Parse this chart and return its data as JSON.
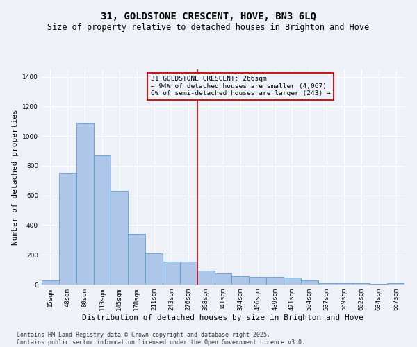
{
  "title": "31, GOLDSTONE CRESCENT, HOVE, BN3 6LQ",
  "subtitle": "Size of property relative to detached houses in Brighton and Hove",
  "xlabel": "Distribution of detached houses by size in Brighton and Hove",
  "ylabel": "Number of detached properties",
  "categories": [
    "15sqm",
    "48sqm",
    "80sqm",
    "113sqm",
    "145sqm",
    "178sqm",
    "211sqm",
    "243sqm",
    "276sqm",
    "308sqm",
    "341sqm",
    "374sqm",
    "406sqm",
    "439sqm",
    "471sqm",
    "504sqm",
    "537sqm",
    "569sqm",
    "602sqm",
    "634sqm",
    "667sqm"
  ],
  "values": [
    30,
    755,
    1090,
    870,
    630,
    340,
    210,
    155,
    155,
    95,
    75,
    55,
    50,
    50,
    45,
    30,
    10,
    10,
    10,
    5,
    10
  ],
  "bar_color": "#aec6e8",
  "bar_edge_color": "#5a9fd4",
  "vline_x_index": 8,
  "vline_color": "#cc0000",
  "annotation_text": "31 GOLDSTONE CRESCENT: 266sqm\n← 94% of detached houses are smaller (4,067)\n6% of semi-detached houses are larger (243) →",
  "annotation_box_color": "#cc0000",
  "ylim": [
    0,
    1450
  ],
  "yticks": [
    0,
    200,
    400,
    600,
    800,
    1000,
    1200,
    1400
  ],
  "footer_line1": "Contains HM Land Registry data © Crown copyright and database right 2025.",
  "footer_line2": "Contains public sector information licensed under the Open Government Licence v3.0.",
  "bg_color": "#eef2f8",
  "grid_color": "#ffffff",
  "title_fontsize": 10,
  "subtitle_fontsize": 8.5,
  "axis_label_fontsize": 8,
  "tick_fontsize": 6.5,
  "footer_fontsize": 6
}
